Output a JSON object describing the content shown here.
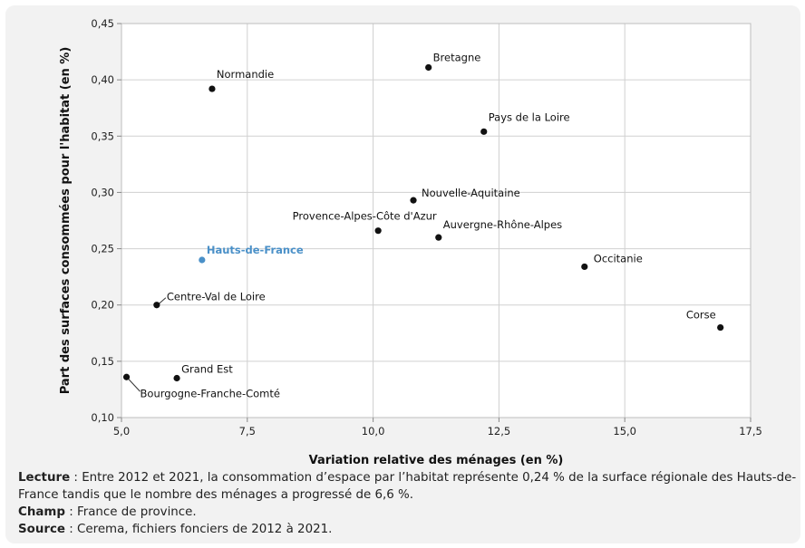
{
  "chart_data": {
    "type": "scatter",
    "xlabel": "Variation relative des ménages (en %)",
    "ylabel": "Part des surfaces consommées pour l'habitat (en %)",
    "xlim": [
      5.0,
      17.5
    ],
    "ylim": [
      0.1,
      0.45
    ],
    "x_ticks": [
      "5,0",
      "7,5",
      "10,0",
      "12,5",
      "15,0",
      "17,5"
    ],
    "x_tick_values": [
      5.0,
      7.5,
      10.0,
      12.5,
      15.0,
      17.5
    ],
    "y_ticks": [
      "0,10",
      "0,15",
      "0,20",
      "0,25",
      "0,30",
      "0,35",
      "0,40",
      "0,45"
    ],
    "y_tick_values": [
      0.1,
      0.15,
      0.2,
      0.25,
      0.3,
      0.35,
      0.4,
      0.45
    ],
    "grid": true,
    "points": [
      {
        "label": "Normandie",
        "x": 6.8,
        "y": 0.392,
        "color": "#111111"
      },
      {
        "label": "Bretagne",
        "x": 11.1,
        "y": 0.411,
        "color": "#111111"
      },
      {
        "label": "Pays de la Loire",
        "x": 12.2,
        "y": 0.354,
        "color": "#111111"
      },
      {
        "label": "Nouvelle-Aquitaine",
        "x": 10.8,
        "y": 0.293,
        "color": "#111111"
      },
      {
        "label": "Provence-Alpes-Côte d'Azur",
        "x": 10.1,
        "y": 0.266,
        "color": "#111111"
      },
      {
        "label": "Auvergne-Rhône-Alpes",
        "x": 11.3,
        "y": 0.26,
        "color": "#111111"
      },
      {
        "label": "Hauts-de-France",
        "x": 6.6,
        "y": 0.24,
        "color": "#4a90c8",
        "highlight": true
      },
      {
        "label": "Occitanie",
        "x": 14.2,
        "y": 0.234,
        "color": "#111111"
      },
      {
        "label": "Centre-Val de Loire",
        "x": 5.7,
        "y": 0.2,
        "color": "#111111"
      },
      {
        "label": "Corse",
        "x": 16.9,
        "y": 0.18,
        "color": "#111111"
      },
      {
        "label": "Grand Est",
        "x": 6.1,
        "y": 0.135,
        "color": "#111111"
      },
      {
        "label": "Bourgogne-Franche-Comté",
        "x": 5.1,
        "y": 0.136,
        "color": "#111111"
      }
    ]
  },
  "notes": {
    "lecture_label": "Lecture",
    "lecture_text": " : Entre 2012 et 2021, la consommation d’espace par l’habitat représente 0,24 % de la surface régionale des Hauts-de-France tandis que le nombre des ménages a progressé de 6,6 %.",
    "champ_label": "Champ",
    "champ_text": " : France de province.",
    "source_label": "Source",
    "source_text": " : Cerema, fichiers fonciers de 2012 à 2021."
  }
}
